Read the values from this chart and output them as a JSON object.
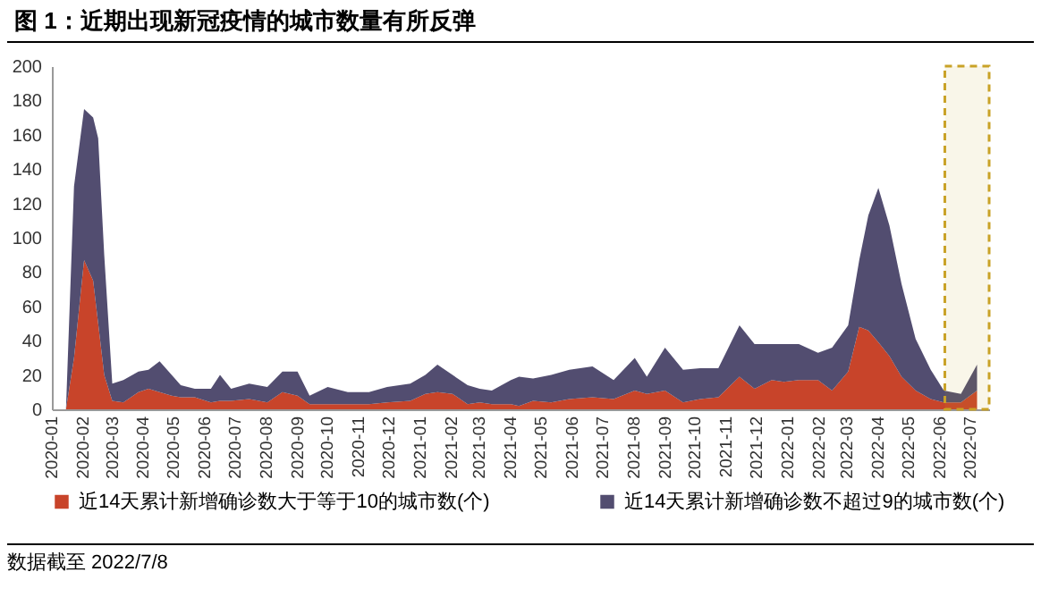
{
  "chart_data": {
    "type": "area",
    "title": "图 1：近期出现新冠疫情的城市数量有所反弹",
    "annotations": [
      "数据截至 2022/7/8"
    ],
    "stacked": true,
    "legend": "bottom",
    "x": [
      "2020-01-01",
      "2020-01-15",
      "2020-01-23",
      "2020-02-02",
      "2020-02-11",
      "2020-02-16",
      "2020-02-22",
      "2020-03-01",
      "2020-03-12",
      "2020-03-27",
      "2020-04-06",
      "2020-04-17",
      "2020-04-29",
      "2020-05-08",
      "2020-05-22",
      "2020-06-07",
      "2020-06-16",
      "2020-06-27",
      "2020-07-15",
      "2020-08-02",
      "2020-08-17",
      "2020-09-01",
      "2020-09-13",
      "2020-10-01",
      "2020-10-21",
      "2020-11-11",
      "2020-11-29",
      "2020-12-22",
      "2021-01-06",
      "2021-01-18",
      "2021-02-02",
      "2021-02-17",
      "2021-03-01",
      "2021-03-13",
      "2021-04-01",
      "2021-04-09",
      "2021-04-23",
      "2021-05-11",
      "2021-05-29",
      "2021-06-21",
      "2021-07-12",
      "2021-08-02",
      "2021-08-14",
      "2021-09-01",
      "2021-09-19",
      "2021-10-06",
      "2021-10-24",
      "2021-11-14",
      "2021-11-29",
      "2021-12-16",
      "2021-12-28",
      "2022-01-12",
      "2022-01-31",
      "2022-02-14",
      "2022-03-02",
      "2022-03-13",
      "2022-03-22",
      "2022-04-01",
      "2022-04-12",
      "2022-04-24",
      "2022-05-08",
      "2022-05-23",
      "2022-06-05",
      "2022-06-22",
      "2022-07-08"
    ],
    "series": [
      {
        "name": "近14天累计新增确诊数大于等于10的城市数(个)",
        "color": "#c8442a",
        "values": [
          0,
          0,
          30,
          87,
          75,
          50,
          20,
          5,
          4,
          10,
          12,
          10,
          8,
          7,
          7,
          4,
          5,
          5,
          6,
          4,
          10,
          8,
          3,
          3,
          3,
          3,
          4,
          5,
          9,
          10,
          9,
          3,
          4,
          3,
          3,
          2,
          5,
          4,
          6,
          7,
          6,
          11,
          9,
          11,
          4,
          6,
          7,
          19,
          12,
          17,
          16,
          17,
          17,
          11,
          22,
          48,
          46,
          39,
          31,
          19,
          11,
          6,
          4,
          4,
          11
        ]
      },
      {
        "name": "近14天累计新增确诊数不超过9的城市数(个)",
        "color": "#524d70",
        "values": [
          0,
          0,
          100,
          88,
          95,
          108,
          70,
          10,
          13,
          12,
          11,
          18,
          12,
          7,
          5,
          8,
          15,
          7,
          9,
          9,
          12,
          14,
          5,
          10,
          7,
          7,
          9,
          10,
          11,
          16,
          11,
          11,
          8,
          8,
          14,
          17,
          13,
          16,
          17,
          18,
          11,
          19,
          10,
          25,
          19,
          18,
          17,
          30,
          26,
          21,
          22,
          21,
          16,
          25,
          27,
          39,
          67,
          90,
          76,
          54,
          30,
          17,
          7,
          5,
          15
        ]
      }
    ],
    "xlim": [
      "2020-01-01",
      "2022-07-20"
    ],
    "xticks": [
      "2020-01",
      "2020-02",
      "2020-03",
      "2020-04",
      "2020-05",
      "2020-06",
      "2020-07",
      "2020-08",
      "2020-09",
      "2020-10",
      "2020-11",
      "2020-12",
      "2021-01",
      "2021-02",
      "2021-03",
      "2021-04",
      "2021-05",
      "2021-06",
      "2021-07",
      "2021-08",
      "2021-09",
      "2021-10",
      "2021-11",
      "2021-12",
      "2022-01",
      "2022-02",
      "2022-03",
      "2022-04",
      "2022-05",
      "2022-06",
      "2022-07"
    ],
    "ylim": [
      0,
      200
    ],
    "yticks": [
      0,
      20,
      40,
      60,
      80,
      100,
      120,
      140,
      160,
      180,
      200
    ],
    "bands": [
      {
        "axis": "x",
        "from": "2022-06-06",
        "to": "2022-07-20",
        "color": "#c9a227"
      }
    ]
  }
}
